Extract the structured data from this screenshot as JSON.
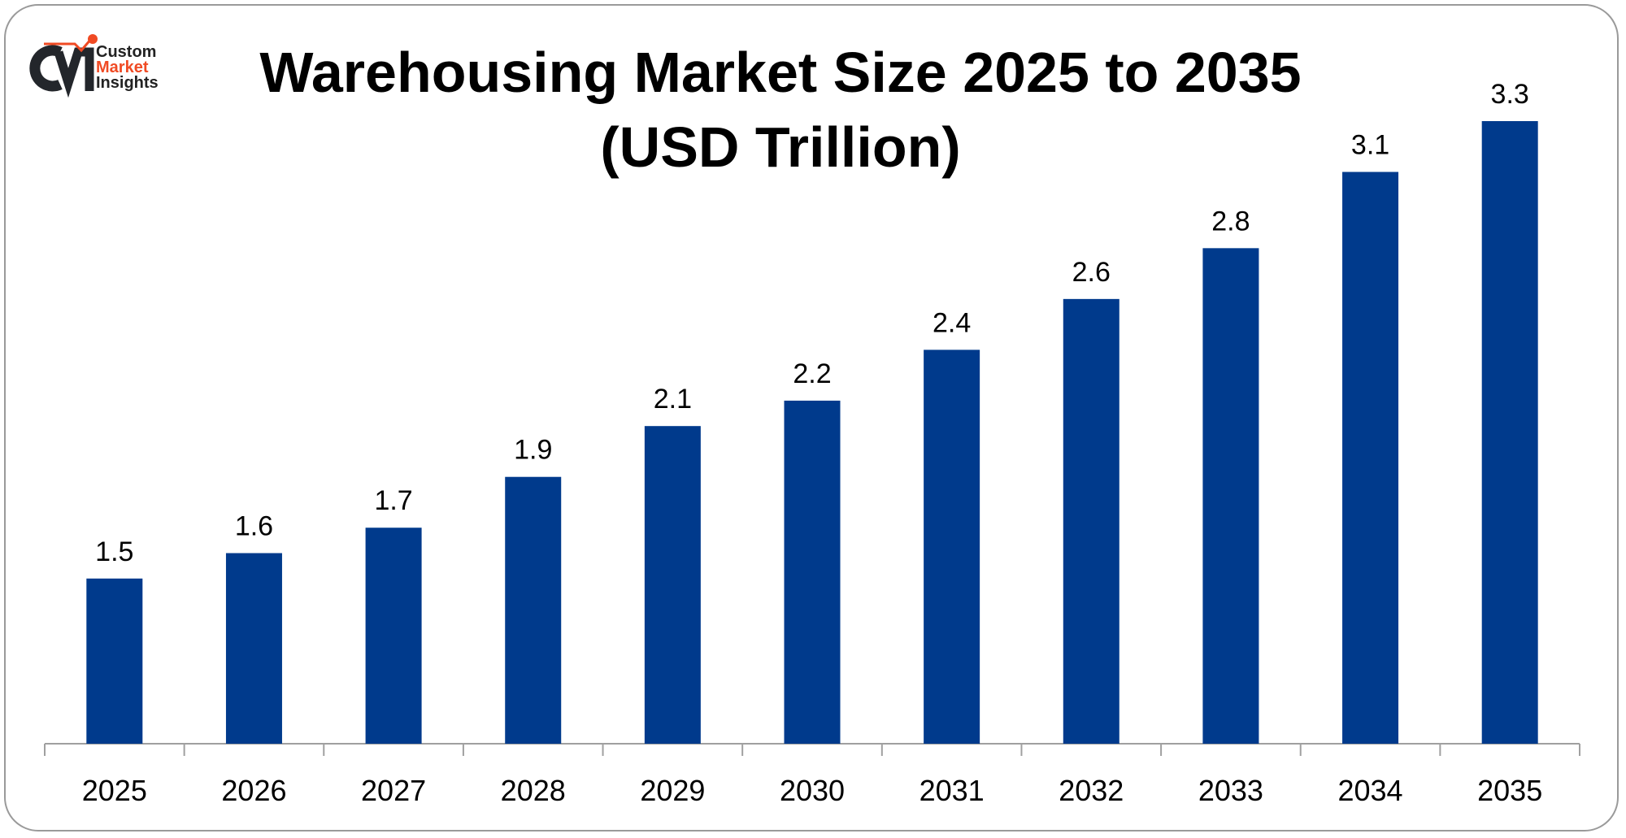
{
  "logo": {
    "line1": "Custom",
    "line2": "Market",
    "line3": "Insights",
    "mark": "CMI"
  },
  "chart_data": {
    "type": "bar",
    "title": "Warehousing Market Size 2025 to 2035",
    "subtitle": "(USD Trillion)",
    "categories": [
      "2025",
      "2026",
      "2027",
      "2028",
      "2029",
      "2030",
      "2031",
      "2032",
      "2033",
      "2034",
      "2035"
    ],
    "values": [
      1.5,
      1.6,
      1.7,
      1.9,
      2.1,
      2.2,
      2.4,
      2.6,
      2.8,
      3.1,
      3.3
    ],
    "xlabel": "",
    "ylabel": "",
    "ylim": [
      0.85,
      3.4
    ],
    "grid": false,
    "bar_color": "#003a8c"
  }
}
